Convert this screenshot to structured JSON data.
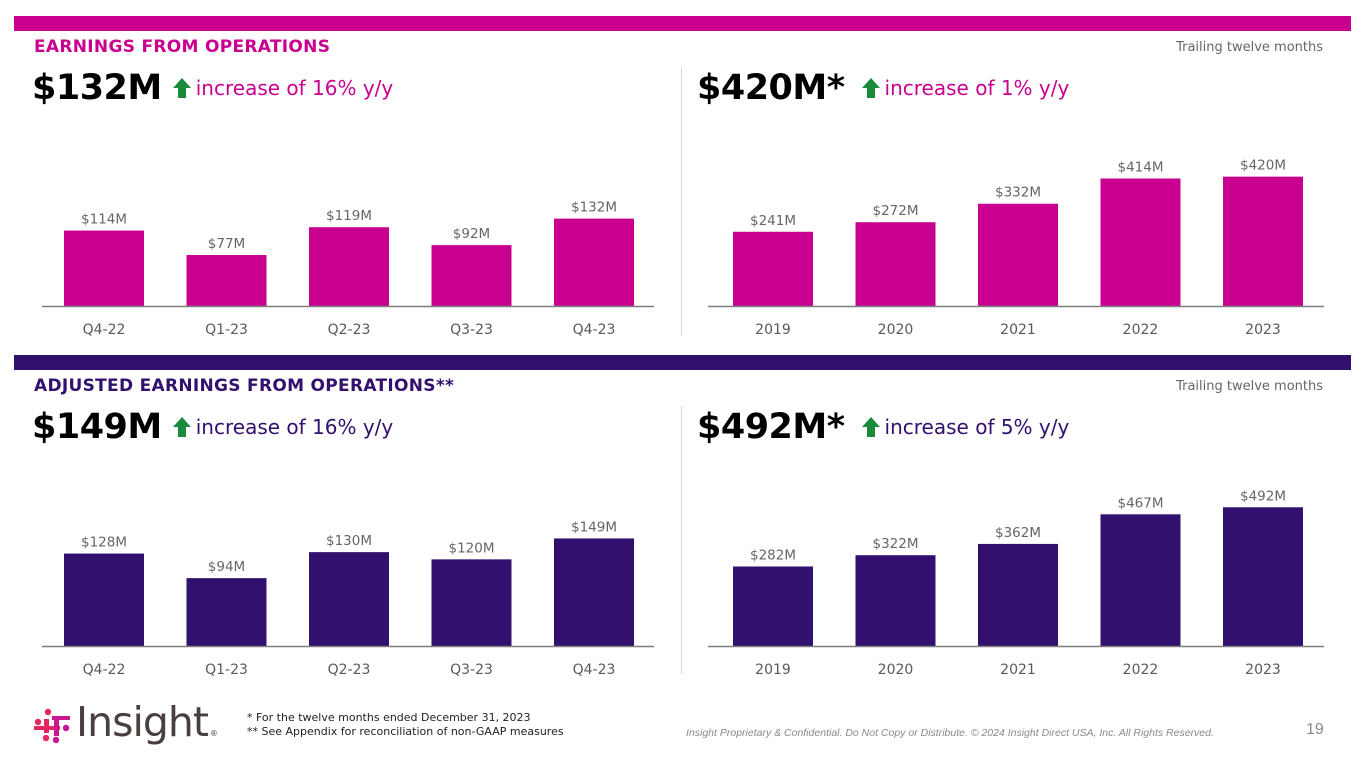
{
  "colors": {
    "magenta": "#c9008f",
    "purple": "#32106e",
    "up_arrow": "#1a8a3c",
    "label_gray": "#666666",
    "axis_gray": "#7f7f7f"
  },
  "sections": [
    {
      "title": "EARNINGS FROM OPERATIONS",
      "ttm_label": "Trailing twelve months",
      "left_kpi": {
        "value": "$132M",
        "change": "increase of 16% y/y",
        "trend_icon": "up-arrow"
      },
      "right_kpi": {
        "value": "$420M*",
        "change": "increase of 1% y/y",
        "trend_icon": "up-arrow"
      }
    },
    {
      "title": "ADJUSTED EARNINGS FROM OPERATIONS**",
      "ttm_label": "Trailing twelve months",
      "left_kpi": {
        "value": "$149M",
        "change": "increase of 16% y/y",
        "trend_icon": "up-arrow"
      },
      "right_kpi": {
        "value": "$492M*",
        "change": "increase of 5% y/y",
        "trend_icon": "up-arrow"
      }
    }
  ],
  "chart_data": [
    {
      "type": "bar",
      "title": "Earnings from Operations (quarterly)",
      "categories": [
        "Q4-22",
        "Q1-23",
        "Q2-23",
        "Q3-23",
        "Q4-23"
      ],
      "values": [
        114,
        77,
        119,
        92,
        132
      ],
      "labels": [
        "$114M",
        "$77M",
        "$119M",
        "$92M",
        "$132M"
      ],
      "unit": "$M",
      "color": "#c9008f",
      "xlabel": "",
      "ylabel": "",
      "grid": false,
      "legend": "none"
    },
    {
      "type": "bar",
      "title": "Earnings from Operations (trailing twelve months)",
      "categories": [
        "2019",
        "2020",
        "2021",
        "2022",
        "2023"
      ],
      "values": [
        241,
        272,
        332,
        414,
        420
      ],
      "labels": [
        "$241M",
        "$272M",
        "$332M",
        "$414M",
        "$420M"
      ],
      "unit": "$M",
      "color": "#c9008f",
      "xlabel": "",
      "ylabel": "",
      "grid": false,
      "legend": "none"
    },
    {
      "type": "bar",
      "title": "Adjusted Earnings from Operations (quarterly)",
      "categories": [
        "Q4-22",
        "Q1-23",
        "Q2-23",
        "Q3-23",
        "Q4-23"
      ],
      "values": [
        128,
        94,
        130,
        120,
        149
      ],
      "labels": [
        "$128M",
        "$94M",
        "$130M",
        "$120M",
        "$149M"
      ],
      "unit": "$M",
      "color": "#32106e",
      "xlabel": "",
      "ylabel": "",
      "grid": false,
      "legend": "none"
    },
    {
      "type": "bar",
      "title": "Adjusted Earnings from Operations (trailing twelve months)",
      "categories": [
        "2019",
        "2020",
        "2021",
        "2022",
        "2023"
      ],
      "values": [
        282,
        322,
        362,
        467,
        492
      ],
      "labels": [
        "$282M",
        "$322M",
        "$362M",
        "$467M",
        "$492M"
      ],
      "unit": "$M",
      "color": "#32106e",
      "xlabel": "",
      "ylabel": "",
      "grid": false,
      "legend": "none"
    }
  ],
  "footer": {
    "logo_text": "Insight",
    "logo_reg": "®",
    "footnote_1": "* For the twelve months ended December 31, 2023",
    "footnote_2": "** See Appendix for reconciliation of non-GAAP measures",
    "legal": "Insight Proprietary & Confidential. Do Not Copy or Distribute. © 2024 Insight Direct USA, Inc. All Rights Reserved.",
    "page_number": "19"
  }
}
